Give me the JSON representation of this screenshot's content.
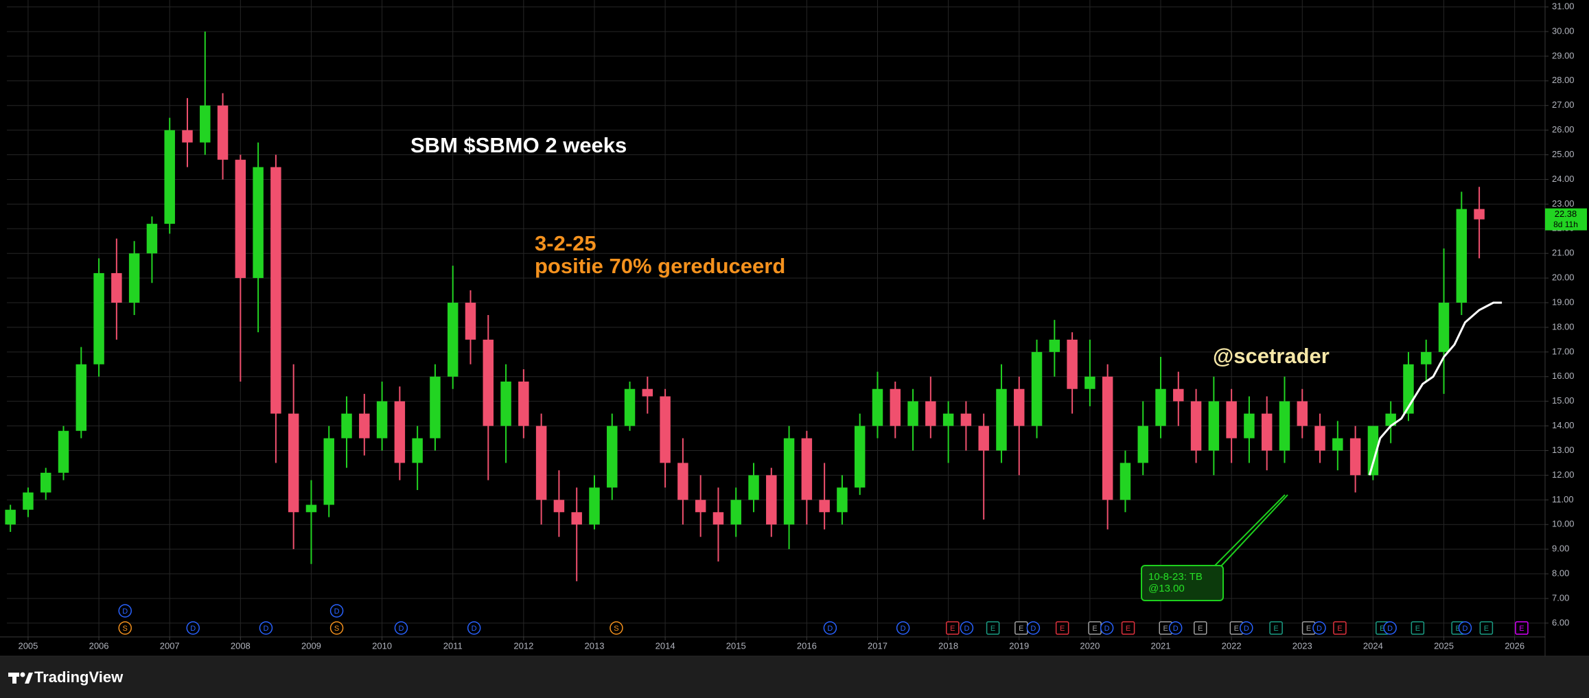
{
  "chart_data": {
    "type": "candlestick",
    "title": "SBM $SBMO 2 weeks",
    "annotations": [
      "3-2-25",
      "positie 70% gereduceerd",
      "@scetrader"
    ],
    "callout": [
      "10-8-23: TB",
      "@13.00"
    ],
    "countdown": "8d 11h",
    "x": [
      2004.75,
      2005,
      2005.25,
      2005.5,
      2005.75,
      2006,
      2006.25,
      2006.5,
      2006.75,
      2007,
      2007.25,
      2007.5,
      2007.75,
      2008,
      2008.25,
      2008.5,
      2008.75,
      2009,
      2009.25,
      2009.5,
      2009.75,
      2010,
      2010.25,
      2010.5,
      2010.75,
      2011,
      2011.25,
      2011.5,
      2011.75,
      2012,
      2012.25,
      2012.5,
      2012.75,
      2013,
      2013.25,
      2013.5,
      2013.75,
      2014,
      2014.25,
      2014.5,
      2014.75,
      2015,
      2015.25,
      2015.5,
      2015.75,
      2016,
      2016.25,
      2016.5,
      2016.75,
      2017,
      2017.25,
      2017.5,
      2017.75,
      2018,
      2018.25,
      2018.5,
      2018.75,
      2019,
      2019.25,
      2019.5,
      2019.75,
      2020,
      2020.25,
      2020.5,
      2020.75,
      2021,
      2021.25,
      2021.5,
      2021.75,
      2022,
      2022.25,
      2022.5,
      2022.75,
      2023,
      2023.25,
      2023.5,
      2023.75,
      2024,
      2024.25,
      2024.5,
      2024.75,
      2025,
      2025.25,
      2025.5
    ],
    "open": [
      10.0,
      10.6,
      11.3,
      12.1,
      13.8,
      16.5,
      20.2,
      19.0,
      21.0,
      22.2,
      26.0,
      25.5,
      27.0,
      24.8,
      20.0,
      24.5,
      14.5,
      10.5,
      10.8,
      13.5,
      14.5,
      13.5,
      15.0,
      12.5,
      13.5,
      16.0,
      19.0,
      17.5,
      14.0,
      15.8,
      14.0,
      11.0,
      10.5,
      10.0,
      11.5,
      14.0,
      15.5,
      15.2,
      12.5,
      11.0,
      10.5,
      10.0,
      11.0,
      12.0,
      10.0,
      13.5,
      11.0,
      10.5,
      11.5,
      14.0,
      15.5,
      14.0,
      15.0,
      14.0,
      14.5,
      14.0,
      13.0,
      15.5,
      14.0,
      17.0,
      17.5,
      15.5,
      16.0,
      11.0,
      12.5,
      14.0,
      15.5,
      15.0,
      13.0,
      15.0,
      13.5,
      14.5,
      13.0,
      15.0,
      14.0,
      13.0,
      13.5,
      12.0,
      14.0,
      14.5,
      16.5,
      17.0,
      19.0,
      22.8
    ],
    "high": [
      10.8,
      11.5,
      12.3,
      14.0,
      17.2,
      20.8,
      21.6,
      21.5,
      22.5,
      26.5,
      27.3,
      30.0,
      27.5,
      25.0,
      25.5,
      25.0,
      16.5,
      11.8,
      14.0,
      15.2,
      15.3,
      15.8,
      15.6,
      14.0,
      16.5,
      20.5,
      19.5,
      18.5,
      16.5,
      16.3,
      14.5,
      12.2,
      11.5,
      12.0,
      14.5,
      15.8,
      16.0,
      15.5,
      13.5,
      12.0,
      11.5,
      11.5,
      12.5,
      12.3,
      14.0,
      13.8,
      12.5,
      12.0,
      14.5,
      16.2,
      15.8,
      15.5,
      16.0,
      15.0,
      15.0,
      14.5,
      16.5,
      16.0,
      17.5,
      18.3,
      17.8,
      17.5,
      16.5,
      13.0,
      15.0,
      16.8,
      16.2,
      15.5,
      16.0,
      15.5,
      15.2,
      15.2,
      16.0,
      15.5,
      14.5,
      14.2,
      14.0,
      14.0,
      15.0,
      17.0,
      17.5,
      21.2,
      23.5,
      23.7
    ],
    "low": [
      9.7,
      10.3,
      11.0,
      11.8,
      13.5,
      16.0,
      17.5,
      18.5,
      19.8,
      21.8,
      24.5,
      25.0,
      24.0,
      15.8,
      17.8,
      12.5,
      9.0,
      8.4,
      10.3,
      12.3,
      12.8,
      13.0,
      11.8,
      11.4,
      13.0,
      15.5,
      16.5,
      11.8,
      12.5,
      13.5,
      10.0,
      9.5,
      7.7,
      9.8,
      11.0,
      13.8,
      14.5,
      11.5,
      10.0,
      9.5,
      8.5,
      9.5,
      10.5,
      9.5,
      9.0,
      10.0,
      9.8,
      10.0,
      11.2,
      13.5,
      13.5,
      13.0,
      13.5,
      12.5,
      13.0,
      10.2,
      12.5,
      12.0,
      13.5,
      16.0,
      14.5,
      14.8,
      9.8,
      10.5,
      12.0,
      13.5,
      14.0,
      12.5,
      12.0,
      12.5,
      12.5,
      12.2,
      12.5,
      13.5,
      12.5,
      12.2,
      11.3,
      11.8,
      13.3,
      14.2,
      15.8,
      15.3,
      18.5,
      20.8
    ],
    "close": [
      10.6,
      11.3,
      12.1,
      13.8,
      16.5,
      20.2,
      19.0,
      21.0,
      22.2,
      26.0,
      25.5,
      27.0,
      24.8,
      20.0,
      24.5,
      14.5,
      10.5,
      10.8,
      13.5,
      14.5,
      13.5,
      15.0,
      12.5,
      13.5,
      16.0,
      19.0,
      17.5,
      14.0,
      15.8,
      14.0,
      11.0,
      10.5,
      10.0,
      11.5,
      14.0,
      15.5,
      15.2,
      12.5,
      11.0,
      10.5,
      10.0,
      11.0,
      12.0,
      10.0,
      13.5,
      11.0,
      10.5,
      11.5,
      14.0,
      15.5,
      14.0,
      15.0,
      14.0,
      14.5,
      14.0,
      13.0,
      15.5,
      14.0,
      17.0,
      17.5,
      15.5,
      16.0,
      11.0,
      12.5,
      14.0,
      15.5,
      15.0,
      13.0,
      15.0,
      13.5,
      14.5,
      13.0,
      15.0,
      14.0,
      13.0,
      13.5,
      12.0,
      14.0,
      14.5,
      16.5,
      17.0,
      19.0,
      22.8,
      22.38
    ],
    "up_color": "#22d422",
    "down_color": "#f0506e",
    "line": {
      "color": "#ffffff",
      "x": [
        2023.95,
        2024.1,
        2024.25,
        2024.4,
        2024.55,
        2024.7,
        2024.85,
        2025.0,
        2025.15,
        2025.3,
        2025.5,
        2025.7,
        2025.82
      ],
      "values": [
        12.0,
        13.5,
        14.0,
        14.3,
        15.0,
        15.7,
        16.0,
        16.8,
        17.3,
        18.2,
        18.7,
        19.0,
        19.0
      ]
    },
    "events": [
      {
        "x": 2006.37,
        "label": "S",
        "color": "#f5921e"
      },
      {
        "x": 2006.37,
        "label": "D",
        "color": "#2962ff"
      },
      {
        "x": 2007.33,
        "label": "D",
        "color": "#2962ff"
      },
      {
        "x": 2008.36,
        "label": "D",
        "color": "#2962ff"
      },
      {
        "x": 2009.36,
        "label": "S",
        "color": "#f5921e"
      },
      {
        "x": 2009.36,
        "label": "D",
        "color": "#2962ff"
      },
      {
        "x": 2010.27,
        "label": "D",
        "color": "#2962ff"
      },
      {
        "x": 2011.3,
        "label": "D",
        "color": "#2962ff"
      },
      {
        "x": 2013.31,
        "label": "S",
        "color": "#f5921e"
      },
      {
        "x": 2016.33,
        "label": "D",
        "color": "#2962ff"
      },
      {
        "x": 2017.36,
        "label": "D",
        "color": "#2962ff"
      },
      {
        "x": 2018.06,
        "label": "E",
        "color": "#e0323e"
      },
      {
        "x": 2018.26,
        "label": "D",
        "color": "#2962ff"
      },
      {
        "x": 2018.63,
        "label": "E",
        "color": "#1b9e85"
      },
      {
        "x": 2019.03,
        "label": "E",
        "color": "#a0a0a0"
      },
      {
        "x": 2019.2,
        "label": "D",
        "color": "#2962ff"
      },
      {
        "x": 2019.61,
        "label": "E",
        "color": "#e0323e"
      },
      {
        "x": 2020.07,
        "label": "E",
        "color": "#a0a0a0"
      },
      {
        "x": 2020.24,
        "label": "D",
        "color": "#2962ff"
      },
      {
        "x": 2020.54,
        "label": "E",
        "color": "#e0323e"
      },
      {
        "x": 2021.07,
        "label": "E",
        "color": "#a0a0a0"
      },
      {
        "x": 2021.21,
        "label": "D",
        "color": "#2962ff"
      },
      {
        "x": 2021.56,
        "label": "E",
        "color": "#a0a0a0"
      },
      {
        "x": 2022.07,
        "label": "E",
        "color": "#a0a0a0"
      },
      {
        "x": 2022.21,
        "label": "D",
        "color": "#2962ff"
      },
      {
        "x": 2022.63,
        "label": "E",
        "color": "#1b9e85"
      },
      {
        "x": 2023.09,
        "label": "E",
        "color": "#a0a0a0"
      },
      {
        "x": 2023.24,
        "label": "D",
        "color": "#2962ff"
      },
      {
        "x": 2023.53,
        "label": "E",
        "color": "#e0323e"
      },
      {
        "x": 2024.13,
        "label": "E",
        "color": "#1b9e85"
      },
      {
        "x": 2024.24,
        "label": "D",
        "color": "#2962ff"
      },
      {
        "x": 2024.63,
        "label": "E",
        "color": "#1b9e85"
      },
      {
        "x": 2025.2,
        "label": "E",
        "color": "#1b9e85"
      },
      {
        "x": 2025.3,
        "label": "D",
        "color": "#2962ff"
      },
      {
        "x": 2025.6,
        "label": "E",
        "color": "#1b9e85"
      },
      {
        "x": 2026.1,
        "label": "E",
        "color": "#d500f9"
      }
    ],
    "xlim": [
      2004.7,
      2026.43
    ],
    "xticks": [
      2005,
      2006,
      2007,
      2008,
      2009,
      2010,
      2011,
      2012,
      2013,
      2014,
      2015,
      2016,
      2017,
      2018,
      2019,
      2020,
      2021,
      2022,
      2023,
      2024,
      2025,
      2026
    ],
    "ylim": [
      5.44,
      31.28
    ],
    "yticks": [
      {
        "value": 6,
        "label": "6.00"
      },
      {
        "value": 7,
        "label": "7.00"
      },
      {
        "value": 8,
        "label": "8.00"
      },
      {
        "value": 9,
        "label": "9.00"
      },
      {
        "value": 10,
        "label": "10.00"
      },
      {
        "value": 11,
        "label": "11.00"
      },
      {
        "value": 12,
        "label": "12.00"
      },
      {
        "value": 13,
        "label": "13.00"
      },
      {
        "value": 14,
        "label": "14.00"
      },
      {
        "value": 15,
        "label": "15.00"
      },
      {
        "value": 16,
        "label": "16.00"
      },
      {
        "value": 17,
        "label": "17.00"
      },
      {
        "value": 18,
        "label": "18.00"
      },
      {
        "value": 19,
        "label": "19.00"
      },
      {
        "value": 20,
        "label": "20.00"
      },
      {
        "value": 21,
        "label": "21.00"
      },
      {
        "value": 22,
        "label": "22.00"
      },
      {
        "value": 23,
        "label": "23.00"
      },
      {
        "value": 24,
        "label": "24.00"
      },
      {
        "value": 25,
        "label": "25.00"
      },
      {
        "value": 26,
        "label": "26.00"
      },
      {
        "value": 27,
        "label": "27.00"
      },
      {
        "value": 28,
        "label": "28.00"
      },
      {
        "value": 29,
        "label": "29.00"
      },
      {
        "value": 30,
        "label": "30.00"
      },
      {
        "value": 31,
        "label": "31.00"
      }
    ],
    "grid": true
  },
  "footer": {
    "brand": "TradingView"
  }
}
